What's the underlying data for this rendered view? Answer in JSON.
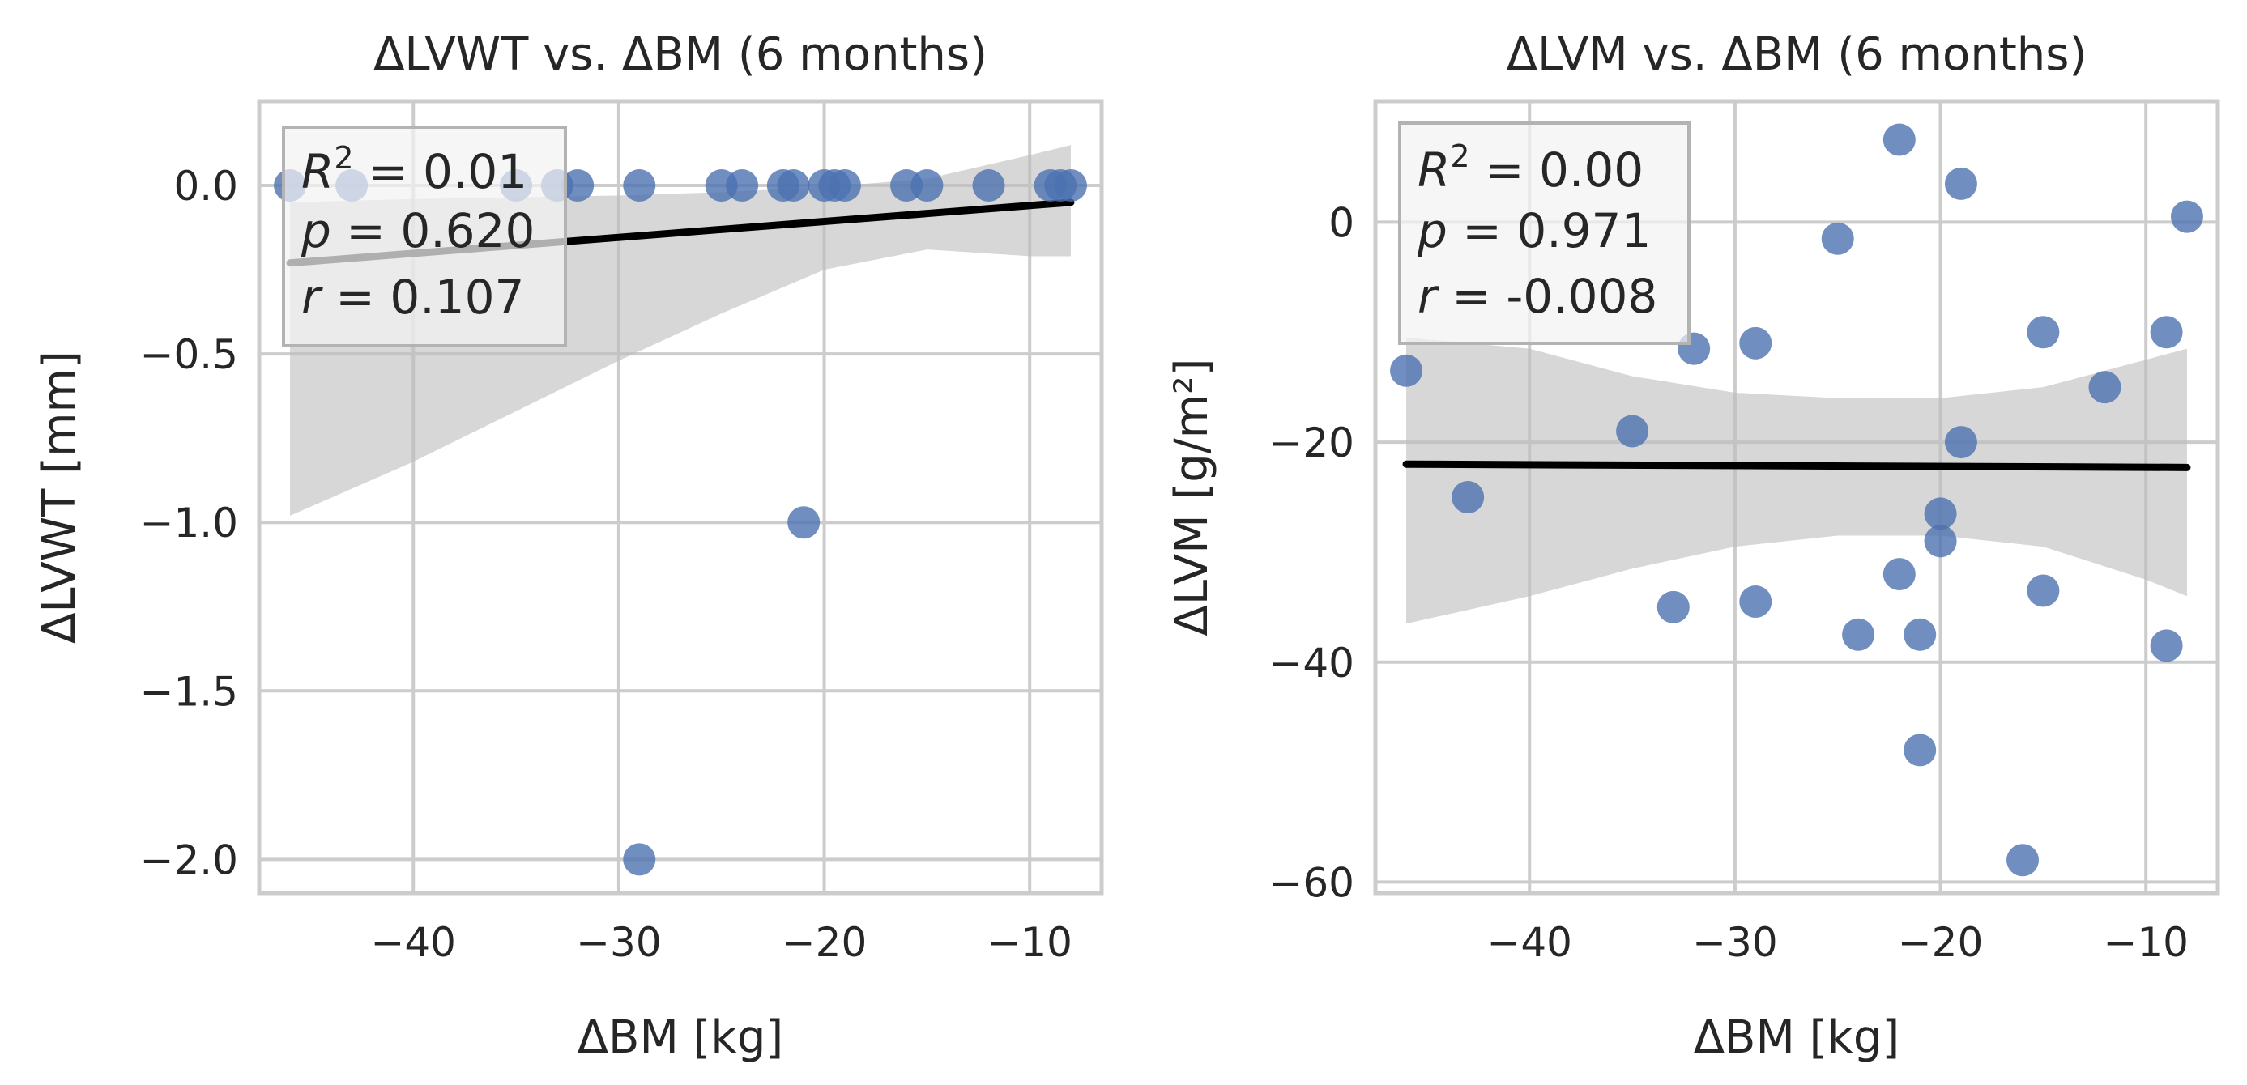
{
  "chart_data": [
    {
      "type": "scatter",
      "title": "ΔLVWT vs. ΔBM (6 months)",
      "xlabel": "ΔBM [kg]",
      "ylabel": "ΔLVWT [mm]",
      "xlim": [
        -47.5,
        -6.5
      ],
      "ylim": [
        -2.1,
        0.25
      ],
      "xticks": [
        -40,
        -30,
        -20,
        -10
      ],
      "xtick_labels": [
        "−40",
        "−30",
        "−20",
        "−10"
      ],
      "yticks": [
        0.0,
        -0.5,
        -1.0,
        -1.5,
        -2.0
      ],
      "ytick_labels": [
        "0.0",
        "−0.5",
        "−1.0",
        "−1.5",
        "−2.0"
      ],
      "grid": true,
      "points": [
        {
          "x": -46,
          "y": 0
        },
        {
          "x": -43,
          "y": 0
        },
        {
          "x": -35,
          "y": 0
        },
        {
          "x": -33,
          "y": 0
        },
        {
          "x": -32,
          "y": 0
        },
        {
          "x": -29,
          "y": 0
        },
        {
          "x": -25,
          "y": 0
        },
        {
          "x": -24,
          "y": 0
        },
        {
          "x": -22,
          "y": 0
        },
        {
          "x": -21.5,
          "y": 0
        },
        {
          "x": -20,
          "y": 0
        },
        {
          "x": -19.5,
          "y": 0
        },
        {
          "x": -19,
          "y": 0
        },
        {
          "x": -16,
          "y": 0
        },
        {
          "x": -15,
          "y": 0
        },
        {
          "x": -12,
          "y": 0
        },
        {
          "x": -9,
          "y": 0
        },
        {
          "x": -8.5,
          "y": 0
        },
        {
          "x": -8,
          "y": 0
        },
        {
          "x": -21,
          "y": -1.0
        },
        {
          "x": -29,
          "y": -2.0
        }
      ],
      "regression": {
        "x": [
          -46,
          -8
        ],
        "y": [
          -0.23,
          -0.05
        ]
      },
      "ci_band": {
        "x": [
          -46,
          -40,
          -35,
          -30,
          -25,
          -20,
          -15,
          -10,
          -8
        ],
        "upper": [
          -0.05,
          -0.04,
          -0.035,
          -0.03,
          -0.02,
          -0.005,
          0.02,
          0.09,
          0.12
        ],
        "lower": [
          -0.98,
          -0.82,
          -0.67,
          -0.52,
          -0.38,
          -0.25,
          -0.19,
          -0.21,
          -0.21
        ]
      },
      "stats": {
        "r2_value": "0.01",
        "p_value": "0.620",
        "r_value": "0.107"
      },
      "legend_position": "top-left"
    },
    {
      "type": "scatter",
      "title": "ΔLVM vs. ΔBM (6 months)",
      "xlabel": "ΔBM [kg]",
      "ylabel": "ΔLVM [g/m²]",
      "xlim": [
        -47.5,
        -6.5
      ],
      "ylim": [
        -61,
        11
      ],
      "xticks": [
        -40,
        -30,
        -20,
        -10
      ],
      "xtick_labels": [
        "−40",
        "−30",
        "−20",
        "−10"
      ],
      "yticks": [
        0,
        -20,
        -40,
        -60
      ],
      "ytick_labels": [
        "0",
        "−20",
        "−40",
        "−60"
      ],
      "grid": true,
      "points": [
        {
          "x": -46,
          "y": -13.5
        },
        {
          "x": -43,
          "y": -25
        },
        {
          "x": -35,
          "y": -19
        },
        {
          "x": -33,
          "y": -35
        },
        {
          "x": -32,
          "y": -11.5
        },
        {
          "x": -29,
          "y": -11
        },
        {
          "x": -29,
          "y": -34.5
        },
        {
          "x": -25,
          "y": -1.5
        },
        {
          "x": -24,
          "y": -37.5
        },
        {
          "x": -22,
          "y": 7.5
        },
        {
          "x": -22,
          "y": -32
        },
        {
          "x": -21,
          "y": -37.5
        },
        {
          "x": -21,
          "y": -48
        },
        {
          "x": -20,
          "y": -26.5
        },
        {
          "x": -20,
          "y": -29
        },
        {
          "x": -19,
          "y": 3.5
        },
        {
          "x": -19,
          "y": -20
        },
        {
          "x": -16,
          "y": -58
        },
        {
          "x": -15,
          "y": -10
        },
        {
          "x": -15,
          "y": -33.5
        },
        {
          "x": -12,
          "y": -15
        },
        {
          "x": -9,
          "y": -10
        },
        {
          "x": -9,
          "y": -38.5
        },
        {
          "x": -8,
          "y": 0.5
        }
      ],
      "regression": {
        "x": [
          -46,
          -8
        ],
        "y": [
          -22,
          -22.3
        ]
      },
      "ci_band": {
        "x": [
          -46,
          -40,
          -35,
          -30,
          -25,
          -20,
          -15,
          -10,
          -8
        ],
        "upper": [
          -10.5,
          -11.5,
          -14,
          -15.5,
          -16,
          -16,
          -15,
          -12.5,
          -11.5
        ],
        "lower": [
          -36.5,
          -34,
          -31.5,
          -29.5,
          -28.5,
          -28.5,
          -29.5,
          -32.5,
          -34
        ]
      },
      "stats": {
        "r2_value": "0.00",
        "p_value": "0.971",
        "r_value": "-0.008"
      },
      "legend_position": "top-left"
    }
  ],
  "stat_labels": {
    "r2_lhs": "R",
    "r2_exp": "2",
    "eq": " = ",
    "p_lhs": "p",
    "r_lhs": "r"
  },
  "colors": {
    "point": "#4c72b0",
    "regression": "#000000",
    "band": "#bdbdbd",
    "grid": "#cccccc",
    "axes_edge": "#cccccc",
    "text": "#262626"
  }
}
